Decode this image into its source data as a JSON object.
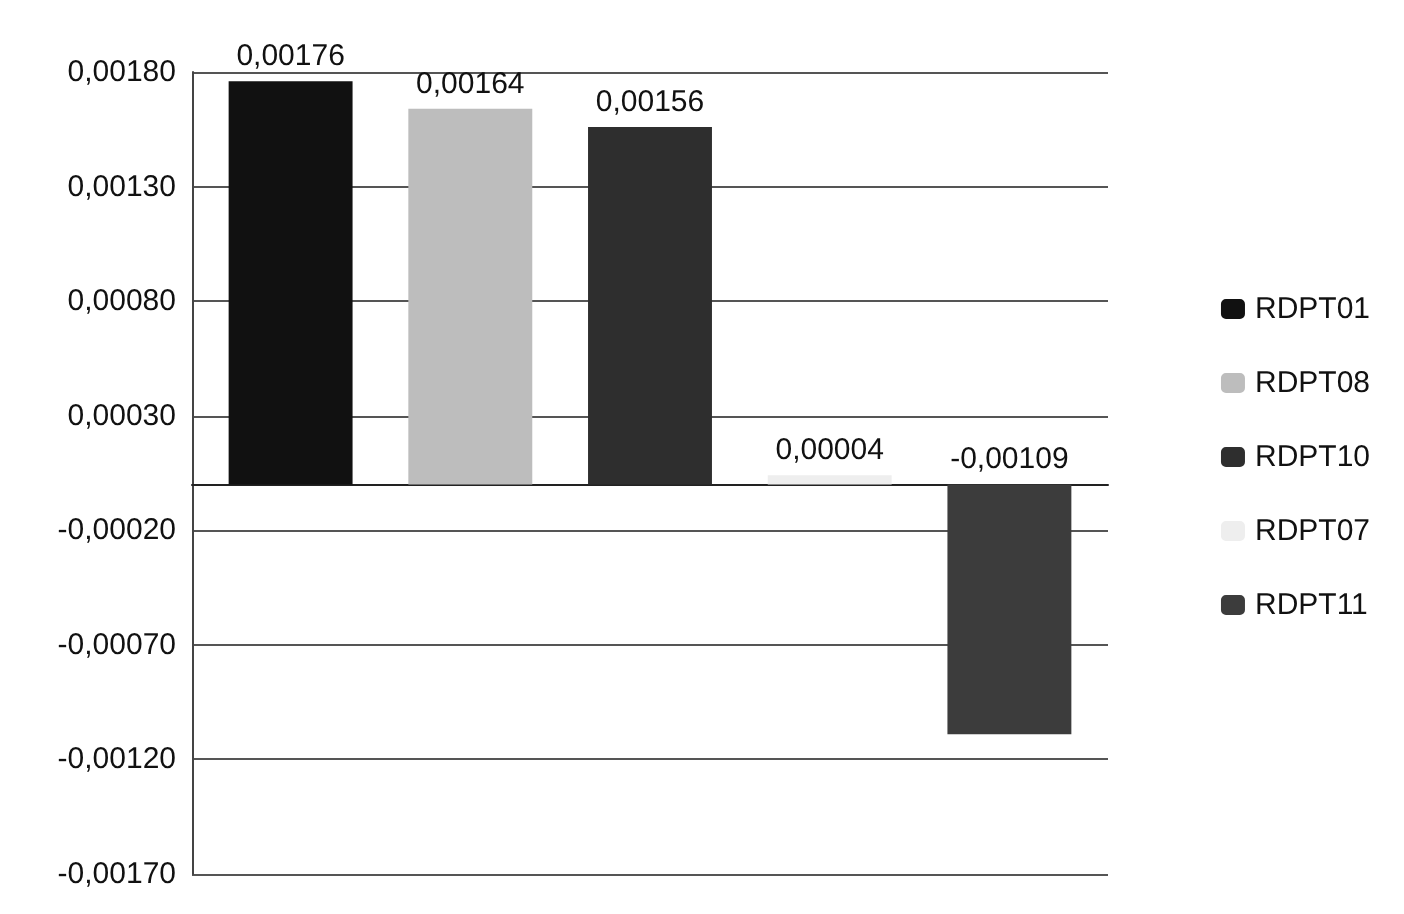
{
  "chart_data": {
    "type": "bar",
    "categories": [
      null
    ],
    "series": [
      {
        "name": "RDPT01",
        "color": "#111111",
        "values": [
          0.00176
        ],
        "value_labels": [
          "0,00176"
        ]
      },
      {
        "name": "RDPT08",
        "color": "#bdbdbd",
        "values": [
          0.00164
        ],
        "value_labels": [
          "0,00164"
        ]
      },
      {
        "name": "RDPT10",
        "color": "#2e2e2e",
        "values": [
          0.00156
        ],
        "value_labels": [
          "0,00156"
        ]
      },
      {
        "name": "RDPT07",
        "color": "#eeeeee",
        "values": [
          4e-05
        ],
        "value_labels": [
          "0,00004"
        ]
      },
      {
        "name": "RDPT11",
        "color": "#3c3c3c",
        "values": [
          -0.00109
        ],
        "value_labels": [
          "-0,00109"
        ]
      }
    ],
    "ylim": [
      -0.0017,
      0.0018
    ],
    "yticks": [
      {
        "value": -0.0017,
        "label": "-0,00170"
      },
      {
        "value": -0.0012,
        "label": "-0,00120"
      },
      {
        "value": -0.0007,
        "label": "-0,00070"
      },
      {
        "value": -0.0002,
        "label": "-0,00020"
      },
      {
        "value": 0.0003,
        "label": "0,00030"
      },
      {
        "value": 0.0008,
        "label": "0,00080"
      },
      {
        "value": 0.0013,
        "label": "0,00130"
      },
      {
        "value": 0.0018,
        "label": "0,00180"
      }
    ],
    "grid": "y",
    "legend": "right"
  }
}
